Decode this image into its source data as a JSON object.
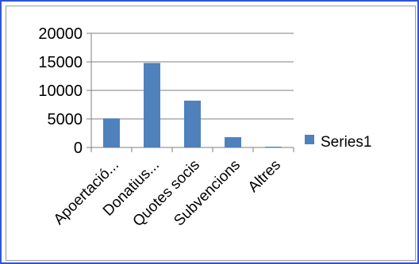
{
  "chart_data": {
    "type": "bar",
    "categories": [
      "Apoertació...",
      "Donatius...",
      "Quotes socis",
      "Subvencions",
      "Altres"
    ],
    "series": [
      {
        "name": "Series1",
        "values": [
          5100,
          14800,
          8200,
          1800,
          100
        ],
        "color": "#4f81bd"
      }
    ],
    "y_ticks": [
      "0",
      "5000",
      "10000",
      "15000",
      "20000"
    ],
    "ylim": [
      0,
      20000
    ],
    "grid": true,
    "legend": {
      "position": "right",
      "label": "Series1"
    },
    "colors": {
      "outer_border": "#2f56d8",
      "plot_border": "#9a9a9a",
      "grid": "#7f7f7f",
      "axis": "#7f7f7f",
      "bar": "#4f81bd"
    }
  }
}
